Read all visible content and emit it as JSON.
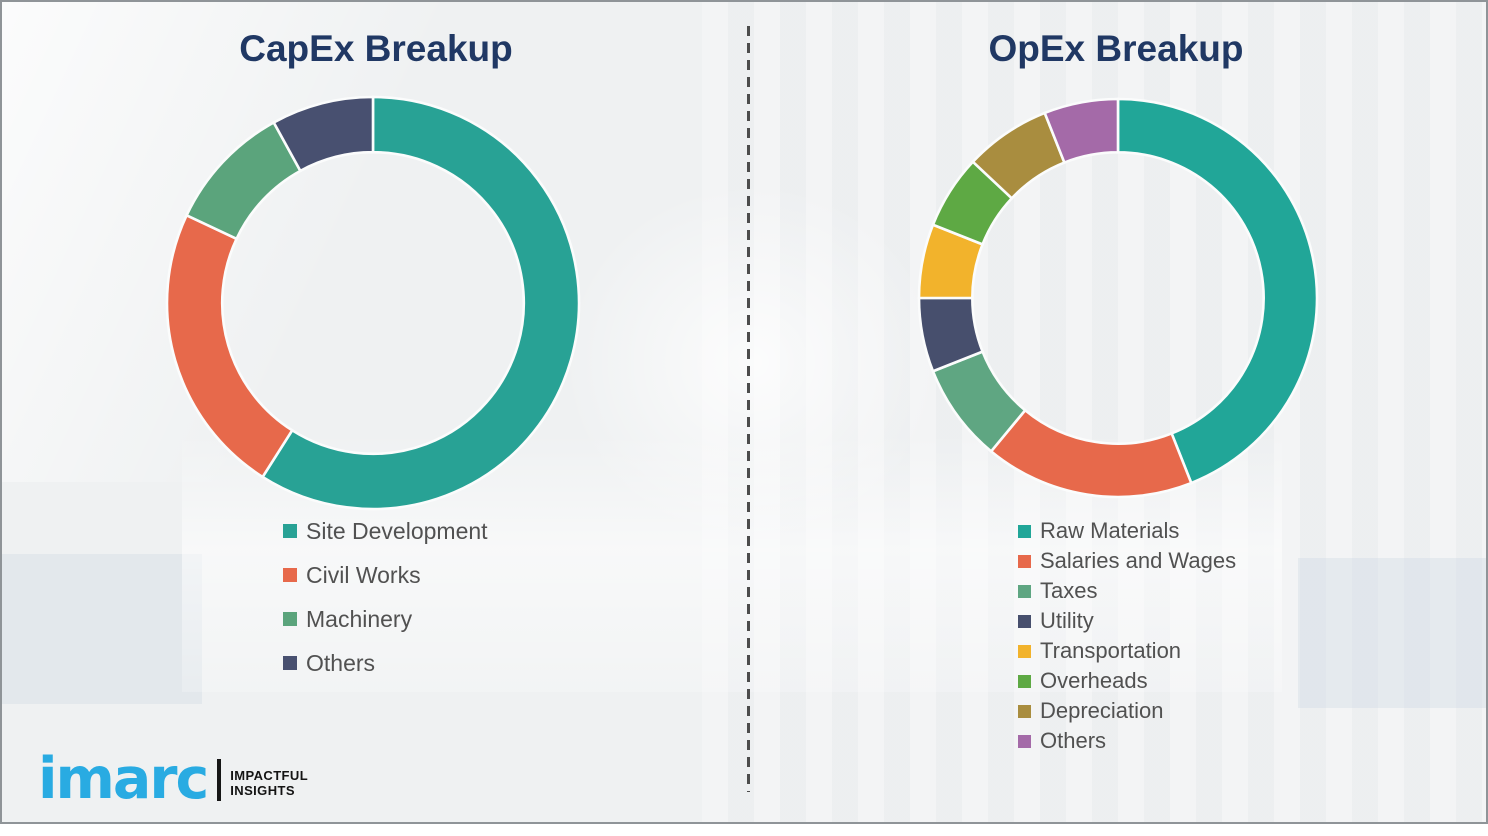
{
  "brand_colors": {
    "title_navy": "#203864",
    "imarc_blue": "#29ABE2",
    "legend_text_gray": "#515151",
    "background_gray": "#eff1f2"
  },
  "logo": {
    "brand": "imarc",
    "tagline_line1": "IMPACTFUL",
    "tagline_line2": "INSIGHTS"
  },
  "chart_data": [
    {
      "type": "pie",
      "variant": "donut",
      "title": "CapEx Breakup",
      "labels": [
        "Site Development",
        "Civil Works",
        "Machinery",
        "Others"
      ],
      "values": [
        59,
        23,
        10,
        8
      ],
      "unit": "%",
      "colors": [
        "#28A295",
        "#E7694B",
        "#5BA47C",
        "#485070"
      ],
      "start_angle_deg": 0,
      "direction": "clockwise",
      "data_labels_shown": false,
      "legend_position": "below-left"
    },
    {
      "type": "pie",
      "variant": "donut",
      "title": "OpEx Breakup",
      "labels": [
        "Raw Materials",
        "Salaries and Wages",
        "Taxes",
        "Utility",
        "Transportation",
        "Overheads",
        "Depreciation",
        "Others"
      ],
      "values": [
        44,
        17,
        8,
        6,
        6,
        6,
        7,
        6
      ],
      "unit": "%",
      "colors": [
        "#21A698",
        "#E7694B",
        "#5FA682",
        "#474F6D",
        "#F2B32C",
        "#5EA944",
        "#A98D3F",
        "#A46AA8"
      ],
      "start_angle_deg": 0,
      "direction": "clockwise",
      "data_labels_shown": false,
      "legend_position": "below-left"
    }
  ]
}
